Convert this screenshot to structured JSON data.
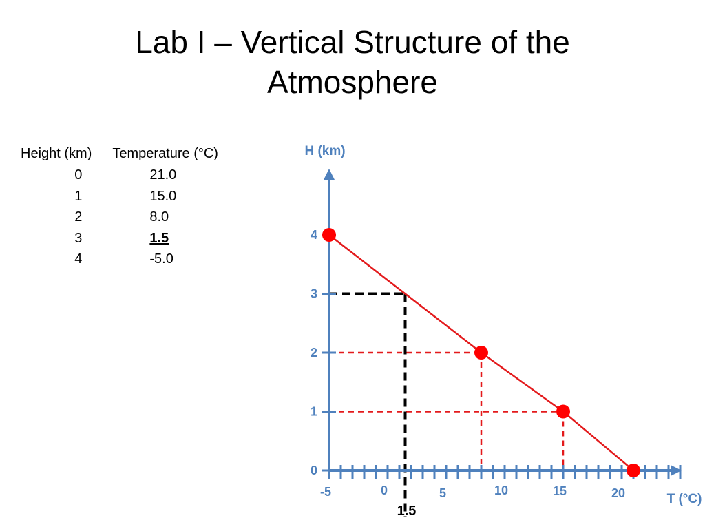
{
  "slide": {
    "title_line1": "Lab I – Vertical Structure of the",
    "title_line2": "Atmosphere"
  },
  "table": {
    "headers": [
      "Height (km)",
      "Temperature (°C)"
    ],
    "rows": [
      {
        "height": "0",
        "temp": "21.0",
        "bold": false
      },
      {
        "height": "1",
        "temp": "15.0",
        "bold": false
      },
      {
        "height": "2",
        "temp": "8.0",
        "bold": false
      },
      {
        "height": "3",
        "temp": "1.5",
        "bold": true
      },
      {
        "height": "4",
        "temp": "-5.0",
        "bold": false
      }
    ]
  },
  "chart_data": {
    "type": "line",
    "xlabel": "T (°C)",
    "ylabel": "H (km)",
    "xlim": [
      -5,
      25
    ],
    "ylim": [
      0,
      4.9
    ],
    "x_ticks": [
      -5,
      0,
      5,
      10,
      15,
      20
    ],
    "y_ticks": [
      0,
      1,
      2,
      3,
      4
    ],
    "x_minor_step": 1,
    "series": [
      {
        "x": [
          21.0,
          15.0,
          8.0,
          -5.0
        ],
        "y": [
          0,
          1,
          2,
          4
        ],
        "markers": true
      }
    ],
    "guides": [
      {
        "x": 15.0,
        "y": 1,
        "color": "#e31a1c"
      },
      {
        "x": 8.0,
        "y": 2,
        "color": "#e31a1c"
      },
      {
        "x": 1.5,
        "y": 3,
        "color": "#000000",
        "extend_below": true
      }
    ],
    "annotation": {
      "x": 1.5,
      "label": "1.5"
    },
    "colors": {
      "axis": "#4f81bd",
      "line": "#e31a1c",
      "marker": "#ff0000",
      "guide_black": "#000000"
    }
  }
}
